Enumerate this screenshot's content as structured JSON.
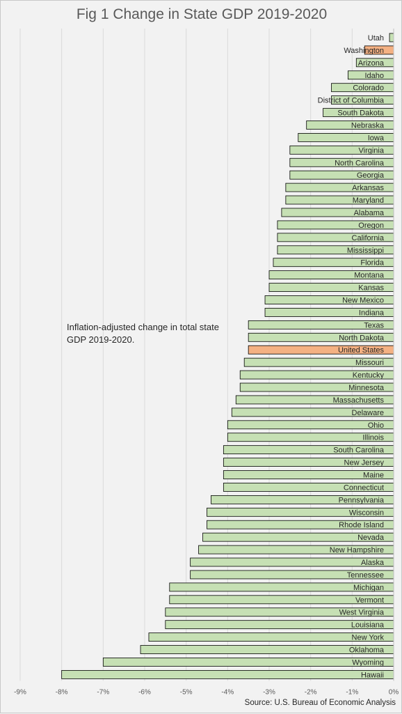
{
  "title": "Fig 1 Change in State GDP 2019-2020",
  "annotation": "Inflation-adjusted change in total state GDP 2019-2020.",
  "source": "Source: U.S. Bureau of Economic Analysis",
  "colors": {
    "bar": "#c6e0b4",
    "highlight": "#f4b183",
    "outline": "#000000",
    "grid": "#d9d9d9",
    "text": "#262626",
    "tick": "#595959"
  },
  "chart_data": {
    "type": "bar",
    "orientation": "horizontal",
    "title": "Fig 1 Change in State GDP 2019-2020",
    "xlim": [
      -9,
      0
    ],
    "xticks": [
      -9,
      -8,
      -7,
      -6,
      -5,
      -4,
      -3,
      -2,
      -1,
      0
    ],
    "xtick_labels": [
      "-9%",
      "-8%",
      "-7%",
      "-6%",
      "-5%",
      "-4%",
      "-3%",
      "-2%",
      "-1%",
      "0%"
    ],
    "grid": "vertical",
    "highlighted": [
      "Washington",
      "United States"
    ],
    "categories": [
      "Utah",
      "Washington",
      "Arizona",
      "Idaho",
      "Colorado",
      "District of Columbia",
      "South Dakota",
      "Nebraska",
      "Iowa",
      "Virginia",
      "North Carolina",
      "Georgia",
      "Arkansas",
      "Maryland",
      "Alabama",
      "Oregon",
      "California",
      "Mississippi",
      "Florida",
      "Montana",
      "Kansas",
      "New Mexico",
      "Indiana",
      "Texas",
      "North Dakota",
      "United States",
      "Missouri",
      "Kentucky",
      "Minnesota",
      "Massachusetts",
      "Delaware",
      "Ohio",
      "Illinois",
      "South Carolina",
      "New Jersey",
      "Maine",
      "Connecticut",
      "Pennsylvania",
      "Wisconsin",
      "Rhode Island",
      "Nevada",
      "New Hampshire",
      "Alaska",
      "Tennessee",
      "Michigan",
      "Vermont",
      "West Virginia",
      "Louisiana",
      "New York",
      "Oklahoma",
      "Wyoming",
      "Hawaii"
    ],
    "values": [
      -0.1,
      -0.7,
      -0.9,
      -1.1,
      -1.5,
      -1.5,
      -1.7,
      -2.1,
      -2.3,
      -2.5,
      -2.5,
      -2.5,
      -2.6,
      -2.6,
      -2.7,
      -2.8,
      -2.8,
      -2.8,
      -2.9,
      -3.0,
      -3.0,
      -3.1,
      -3.1,
      -3.5,
      -3.5,
      -3.5,
      -3.6,
      -3.7,
      -3.7,
      -3.8,
      -3.9,
      -4.0,
      -4.0,
      -4.1,
      -4.1,
      -4.1,
      -4.1,
      -4.4,
      -4.5,
      -4.5,
      -4.6,
      -4.7,
      -4.9,
      -4.9,
      -5.4,
      -5.4,
      -5.5,
      -5.5,
      -5.9,
      -6.1,
      -7.0,
      -8.0
    ]
  }
}
